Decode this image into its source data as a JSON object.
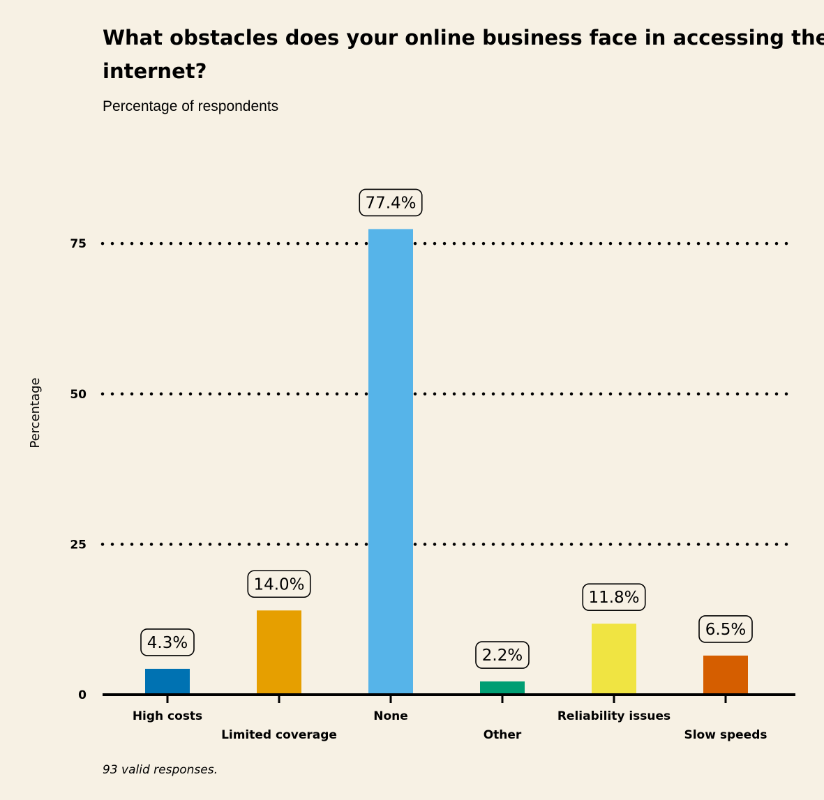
{
  "chart_data": {
    "type": "bar",
    "title": "What obstacles does your online business face in accessing the internet?",
    "subtitle": "Percentage of respondents",
    "ylabel": "Percentage",
    "xlabel": "",
    "caption": "93 valid responses.",
    "ylim": [
      0,
      92
    ],
    "yticks": [
      0,
      25,
      50,
      75
    ],
    "grid": "horizontal dotted",
    "categories": [
      "High costs",
      "Limited coverage",
      "None",
      "Other",
      "Reliability issues",
      "Slow speeds"
    ],
    "values": [
      4.3,
      14.0,
      77.4,
      2.2,
      11.8,
      6.5
    ],
    "data_labels": [
      "4.3%",
      "14.0%",
      "77.4%",
      "2.2%",
      "11.8%",
      "6.5%"
    ],
    "colors": [
      "#0072b2",
      "#e69f00",
      "#56b4e9",
      "#009e73",
      "#f0e442",
      "#d55e00"
    ]
  }
}
